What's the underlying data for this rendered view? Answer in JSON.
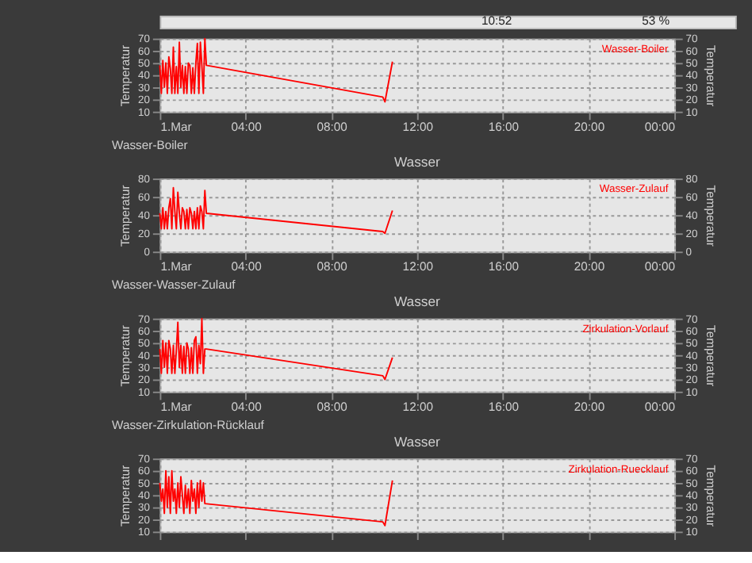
{
  "chart_data": [
    {
      "type": "line",
      "xlabel": "Wasser-Boiler",
      "ylabel": "Temperatur",
      "y2label": "Temperatur",
      "annotations": [
        "10:52",
        "53 %"
      ],
      "x": [
        0,
        0.07,
        0.14,
        0.21,
        0.28,
        0.35,
        0.42,
        0.49,
        0.56,
        0.63,
        0.7,
        0.77,
        0.84,
        0.91,
        0.98,
        1.05,
        1.12,
        1.19,
        1.26,
        1.33,
        1.4,
        1.47,
        1.54,
        1.61,
        1.68,
        1.75,
        1.82,
        1.89,
        1.96,
        2.03,
        2.1,
        2.17,
        10.4,
        10.5,
        10.85
      ],
      "series": [
        {
          "name": "Wasser-Boiler",
          "color": "#ff0000",
          "values": [
            48,
            25,
            52,
            30,
            50,
            25,
            55,
            45,
            25,
            63,
            25,
            47,
            25,
            67,
            30,
            48,
            25,
            47,
            25,
            50,
            48,
            25,
            46,
            25,
            50,
            66,
            25,
            67,
            48,
            25,
            70,
            48,
            22,
            18,
            51
          ]
        }
      ],
      "xlim": [
        0,
        24
      ],
      "xticks": [
        {
          "value": 0,
          "label": "1.Mar"
        },
        {
          "value": 4,
          "label": "04:00"
        },
        {
          "value": 8,
          "label": "08:00"
        },
        {
          "value": 12,
          "label": "12:00"
        },
        {
          "value": 16,
          "label": "16:00"
        },
        {
          "value": 20,
          "label": "20:00"
        },
        {
          "value": 24,
          "label": "00:00"
        }
      ],
      "ylim": [
        10,
        70
      ],
      "yticks": [
        10,
        20,
        30,
        40,
        50,
        60,
        70
      ],
      "y2lim": [
        10,
        70
      ],
      "y2ticks": [
        10,
        20,
        30,
        40,
        50,
        60,
        70
      ],
      "grid": true,
      "legend": "top right",
      "line_style": "solid",
      "marker": "none"
    },
    {
      "type": "line",
      "title": "Wasser",
      "xlabel": "Wasser-Wasser-Zulauf",
      "ylabel": "Temperatur",
      "y2label": "Temperatur",
      "x": [
        0,
        0.07,
        0.14,
        0.21,
        0.28,
        0.35,
        0.42,
        0.49,
        0.56,
        0.63,
        0.7,
        0.77,
        0.84,
        0.91,
        0.98,
        1.05,
        1.12,
        1.19,
        1.26,
        1.33,
        1.4,
        1.47,
        1.54,
        1.61,
        1.68,
        1.75,
        1.82,
        1.89,
        1.96,
        2.03,
        2.1,
        2.17,
        10.4,
        10.5,
        10.85
      ],
      "series": [
        {
          "name": "Wasser-Zulauf",
          "color": "#ff0000",
          "values": [
            42,
            25,
            48,
            25,
            44,
            25,
            48,
            58,
            25,
            70,
            44,
            25,
            65,
            42,
            25,
            48,
            44,
            25,
            46,
            25,
            48,
            42,
            25,
            44,
            25,
            48,
            25,
            50,
            44,
            25,
            67,
            42,
            22,
            20,
            45
          ]
        }
      ],
      "xlim": [
        0,
        24
      ],
      "xticks": [
        {
          "value": 0,
          "label": "1.Mar"
        },
        {
          "value": 4,
          "label": "04:00"
        },
        {
          "value": 8,
          "label": "08:00"
        },
        {
          "value": 12,
          "label": "12:00"
        },
        {
          "value": 16,
          "label": "16:00"
        },
        {
          "value": 20,
          "label": "20:00"
        },
        {
          "value": 24,
          "label": "00:00"
        }
      ],
      "ylim": [
        0,
        80
      ],
      "yticks": [
        0,
        20,
        40,
        60,
        80
      ],
      "y2lim": [
        0,
        80
      ],
      "y2ticks": [
        0,
        20,
        40,
        60,
        80
      ],
      "grid": true,
      "legend": "top right",
      "line_style": "solid",
      "marker": "none"
    },
    {
      "type": "line",
      "title": "Wasser",
      "xlabel": "Wasser-Zirkulation-Rücklauf",
      "ylabel": "Temperatur",
      "y2label": "Temperatur",
      "x": [
        0,
        0.07,
        0.14,
        0.21,
        0.28,
        0.35,
        0.42,
        0.49,
        0.56,
        0.63,
        0.7,
        0.77,
        0.84,
        0.91,
        0.98,
        1.05,
        1.12,
        1.19,
        1.26,
        1.33,
        1.4,
        1.47,
        1.54,
        1.61,
        1.68,
        1.75,
        1.82,
        1.89,
        1.96,
        2.03,
        2.1,
        2.17,
        10.4,
        10.5,
        10.85
      ],
      "series": [
        {
          "name": "Zirkulation-Vorlauf",
          "color": "#ff0000",
          "values": [
            45,
            25,
            52,
            30,
            50,
            25,
            52,
            45,
            25,
            48,
            25,
            44,
            67,
            30,
            48,
            25,
            47,
            25,
            50,
            45,
            25,
            46,
            25,
            52,
            55,
            25,
            48,
            33,
            70,
            25,
            45,
            45,
            23,
            20,
            38
          ]
        }
      ],
      "xlim": [
        0,
        24
      ],
      "xticks": [
        {
          "value": 0,
          "label": "1.Mar"
        },
        {
          "value": 4,
          "label": "04:00"
        },
        {
          "value": 8,
          "label": "08:00"
        },
        {
          "value": 12,
          "label": "12:00"
        },
        {
          "value": 16,
          "label": "16:00"
        },
        {
          "value": 20,
          "label": "20:00"
        },
        {
          "value": 24,
          "label": "00:00"
        }
      ],
      "ylim": [
        10,
        70
      ],
      "yticks": [
        10,
        20,
        30,
        40,
        50,
        60,
        70
      ],
      "y2lim": [
        10,
        70
      ],
      "y2ticks": [
        10,
        20,
        30,
        40,
        50,
        60,
        70
      ],
      "grid": true,
      "legend": "top right",
      "line_style": "solid",
      "marker": "none"
    },
    {
      "type": "line",
      "title": "Wasser",
      "ylabel": "Temperatur",
      "y2label": "Temperatur",
      "x": [
        0,
        0.07,
        0.14,
        0.21,
        0.28,
        0.35,
        0.42,
        0.49,
        0.56,
        0.63,
        0.7,
        0.77,
        0.84,
        0.91,
        0.98,
        1.05,
        1.12,
        1.19,
        1.26,
        1.33,
        1.4,
        1.47,
        1.54,
        1.61,
        1.68,
        1.75,
        1.82,
        1.89,
        1.96,
        2.03,
        2.1,
        10.4,
        10.5,
        10.85
      ],
      "series": [
        {
          "name": "Zirkulation-Ruecklauf",
          "color": "#ff0000",
          "values": [
            50,
            35,
            45,
            25,
            60,
            30,
            55,
            25,
            60,
            35,
            45,
            25,
            50,
            30,
            55,
            40,
            25,
            48,
            30,
            45,
            25,
            52,
            35,
            45,
            25,
            50,
            30,
            52,
            35,
            50,
            33,
            18,
            15,
            52
          ]
        }
      ],
      "xlim": [
        0,
        24
      ],
      "xticks": [
        0,
        4,
        8,
        12,
        16,
        20,
        24
      ],
      "ylim": [
        10,
        70
      ],
      "yticks": [
        10,
        20,
        30,
        40,
        50,
        60,
        70
      ],
      "y2lim": [
        10,
        70
      ],
      "y2ticks": [
        10,
        20,
        30,
        40,
        50,
        60,
        70
      ],
      "grid": true,
      "legend": "top right",
      "line_style": "solid",
      "marker": "none",
      "tick_labels": "y"
    }
  ]
}
